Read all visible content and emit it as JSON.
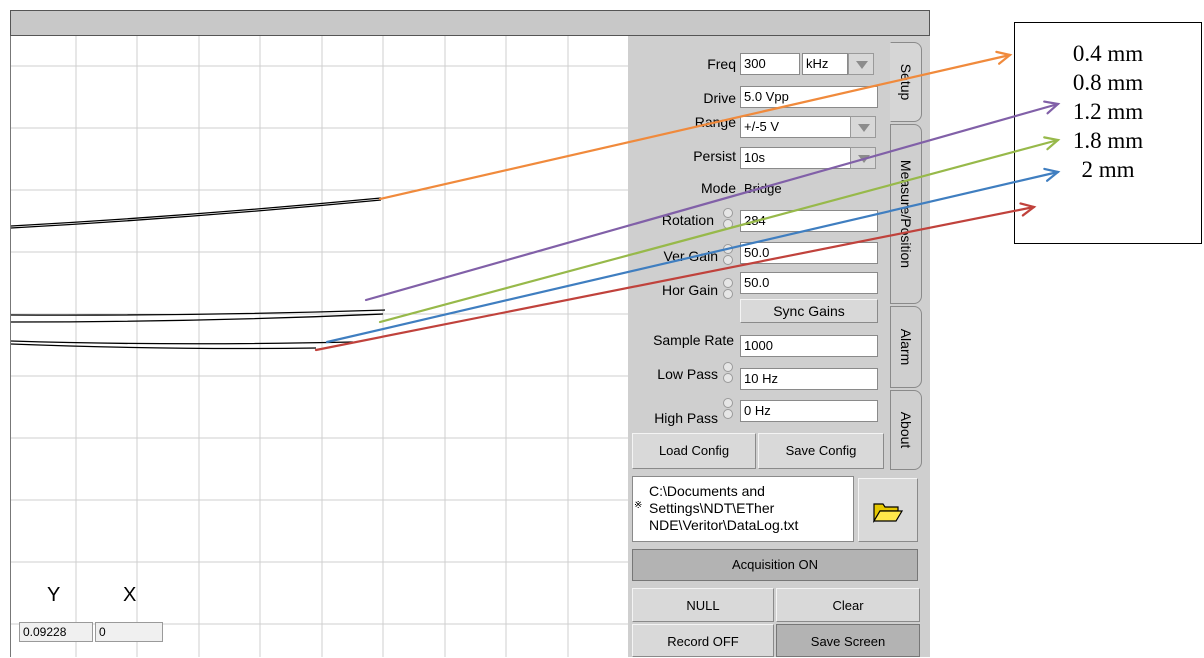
{
  "plot": {
    "y_label": "Y",
    "x_label": "X",
    "y_value": "0.09228",
    "x_value": "0"
  },
  "setup": {
    "freq_label": "Freq",
    "freq_value": "300",
    "freq_unit": "kHz",
    "drive_label": "Drive",
    "drive_value": "5.0 Vpp",
    "range_label": "Range",
    "range_value": "+/-5 V",
    "persist_label": "Persist",
    "persist_value": "10s",
    "mode_label": "Mode",
    "mode_value": "Bridge",
    "rotation_label": "Rotation",
    "rotation_value": "284",
    "ver_gain_label": "Ver Gain",
    "ver_gain_value": "50.0",
    "hor_gain_label": "Hor Gain",
    "hor_gain_value": "50.0",
    "sync_gains_label": "Sync Gains",
    "sample_rate_label": "Sample Rate",
    "sample_rate_value": "1000",
    "low_pass_label": "Low Pass",
    "low_pass_value": "10 Hz",
    "high_pass_label": "High Pass",
    "high_pass_value": "0 Hz",
    "load_config_label": "Load Config",
    "save_config_label": "Save Config"
  },
  "tabs": [
    "Setup",
    "Measure/Position",
    "Alarm",
    "About"
  ],
  "log_path": [
    "C:\\Documents and",
    "Settings\\NDT\\EThe​r",
    "NDE\\Veritor\\DataLog.txt"
  ],
  "controls": {
    "acquisition_label": "Acquisition ON",
    "null_label": "NULL",
    "clear_label": "Clear",
    "record_label": "Record OFF",
    "save_screen_label": "Save Screen"
  },
  "legend": {
    "items": [
      "0.4 mm",
      "0.8 mm",
      "1.2 mm",
      "1.8 mm",
      "2  mm"
    ],
    "colors": [
      "#f08a3c",
      "#8160a8",
      "#97b94a",
      "#3f7ec0",
      "#c0423c"
    ]
  }
}
